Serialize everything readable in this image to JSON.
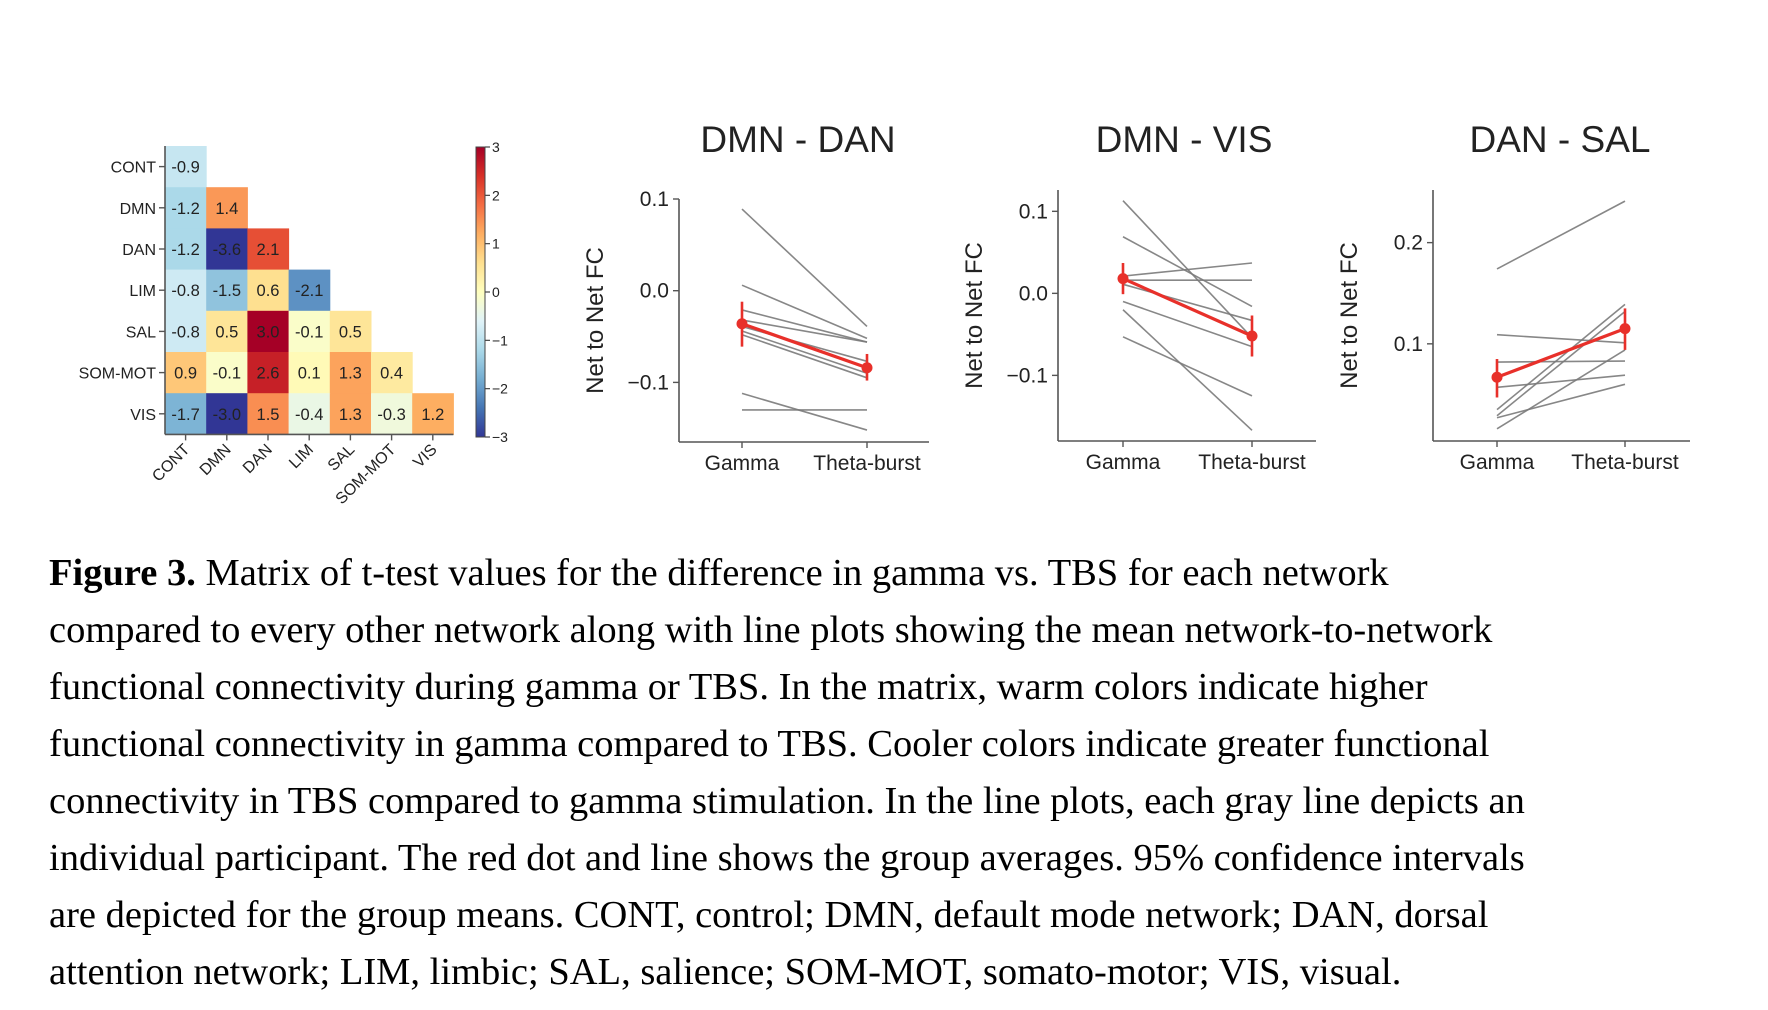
{
  "chart_data": [
    {
      "type": "heatmap",
      "title": "",
      "row_labels": [
        "CONT",
        "DMN",
        "DAN",
        "LIM",
        "SAL",
        "SOM-MOT",
        "VIS"
      ],
      "col_labels": [
        "CONT",
        "DMN",
        "DAN",
        "LIM",
        "SAL",
        "SOM-MOT",
        "VIS"
      ],
      "values": [
        [
          -0.9
        ],
        [
          -1.2,
          1.4
        ],
        [
          -1.2,
          -3.6,
          2.1
        ],
        [
          -0.8,
          -1.5,
          0.6,
          -2.1
        ],
        [
          -0.8,
          0.5,
          3.0,
          -0.1,
          0.5
        ],
        [
          0.9,
          -0.1,
          2.6,
          0.1,
          1.3,
          0.4
        ],
        [
          -1.7,
          -3.0,
          1.5,
          -0.4,
          1.3,
          -0.3,
          1.2
        ]
      ],
      "value_labels": [
        [
          "-0.9"
        ],
        [
          "-1.2",
          "1.4"
        ],
        [
          "-1.2",
          "-3.6",
          "2.1"
        ],
        [
          "-0.8",
          "-1.5",
          "0.6",
          "-2.1"
        ],
        [
          "-0.8",
          "0.5",
          "3.0",
          "-0.1",
          "0.5"
        ],
        [
          "0.9",
          "-0.1",
          "2.6",
          "0.1",
          "1.3",
          "0.4"
        ],
        [
          "-1.7",
          "-3.0",
          "1.5",
          "-0.4",
          "1.3",
          "-0.3",
          "1.2"
        ]
      ],
      "colormap": "RdYlBu_r",
      "vmin": -3,
      "vmax": 3,
      "colorbar_ticks": [
        "3",
        "2",
        "1",
        "0",
        "−1",
        "−2",
        "−3"
      ],
      "colorbar_tick_values": [
        3,
        2,
        1,
        0,
        -1,
        -2,
        -3
      ]
    },
    {
      "type": "line",
      "title": "DMN - DAN",
      "xlabel": "",
      "ylabel": "Net to Net FC",
      "categories": [
        "Gamma",
        "Theta-burst"
      ],
      "ylim": [
        -0.165,
        0.1
      ],
      "yticks": [
        0.1,
        0.0,
        -0.1
      ],
      "ytick_labels": [
        "0.1",
        "0.0",
        "−0.1"
      ],
      "participants": [
        [
          0.089,
          -0.039
        ],
        [
          0.006,
          -0.052
        ],
        [
          -0.021,
          -0.056
        ],
        [
          -0.032,
          -0.056
        ],
        [
          -0.039,
          -0.077
        ],
        [
          -0.044,
          -0.09
        ],
        [
          -0.048,
          -0.095
        ],
        [
          -0.112,
          -0.152
        ],
        [
          -0.13,
          -0.13
        ]
      ],
      "mean": [
        -0.036,
        -0.084
      ],
      "ci_low": [
        -0.061,
        -0.098
      ],
      "ci_high": [
        -0.012,
        -0.069
      ]
    },
    {
      "type": "line",
      "title": "DMN - VIS",
      "xlabel": "",
      "ylabel": "Net to Net FC",
      "categories": [
        "Gamma",
        "Theta-burst"
      ],
      "ylim": [
        -0.18,
        0.126
      ],
      "yticks": [
        0.1,
        0.0,
        -0.1
      ],
      "ytick_labels": [
        "0.1",
        "0.0",
        "−0.1"
      ],
      "participants": [
        [
          0.113,
          -0.054
        ],
        [
          0.069,
          -0.016
        ],
        [
          0.021,
          0.037
        ],
        [
          0.016,
          0.016
        ],
        [
          0.011,
          -0.033
        ],
        [
          -0.01,
          -0.065
        ],
        [
          -0.02,
          -0.167
        ],
        [
          -0.053,
          -0.125
        ]
      ],
      "mean": [
        0.018,
        -0.052
      ],
      "ci_low": [
        -0.001,
        -0.077
      ],
      "ci_high": [
        0.037,
        -0.027
      ]
    },
    {
      "type": "line",
      "title": "DAN - SAL",
      "xlabel": "",
      "ylabel": "Net to Net FC",
      "categories": [
        "Gamma",
        "Theta-burst"
      ],
      "ylim": [
        0.004,
        0.252
      ],
      "yticks": [
        0.2,
        0.1
      ],
      "ytick_labels": [
        "0.2",
        "0.1"
      ],
      "participants": [
        [
          0.174,
          0.241
        ],
        [
          0.109,
          0.101
        ],
        [
          0.082,
          0.083
        ],
        [
          0.057,
          0.069
        ],
        [
          0.035,
          0.139
        ],
        [
          0.029,
          0.132
        ],
        [
          0.027,
          0.06
        ],
        [
          0.016,
          0.094
        ]
      ],
      "mean": [
        0.067,
        0.115
      ],
      "ci_low": [
        0.047,
        0.094
      ],
      "ci_high": [
        0.085,
        0.135
      ]
    }
  ],
  "caption": {
    "label": "Figure 3.",
    "lines": [
      " Matrix of t-test values for the difference in gamma vs. TBS for each network",
      "compared to every other network along with line plots showing the mean network-to-network",
      "functional connectivity during gamma or TBS. In the matrix, warm colors indicate higher",
      "functional connectivity in gamma compared to TBS. Cooler colors indicate greater functional",
      "connectivity in TBS compared to gamma stimulation. In the line plots, each gray line depicts an",
      "individual participant. The red dot and line shows the group averages. 95% confidence intervals",
      "are depicted for the group means. CONT, control; DMN, default mode network; DAN, dorsal",
      "attention network; LIM, limbic; SAL, salience; SOM-MOT, somato-motor; VIS, visual."
    ]
  },
  "colors": {
    "participant_line": "#7a7a7a",
    "mean": "#e8302a",
    "axis": "#555555"
  }
}
